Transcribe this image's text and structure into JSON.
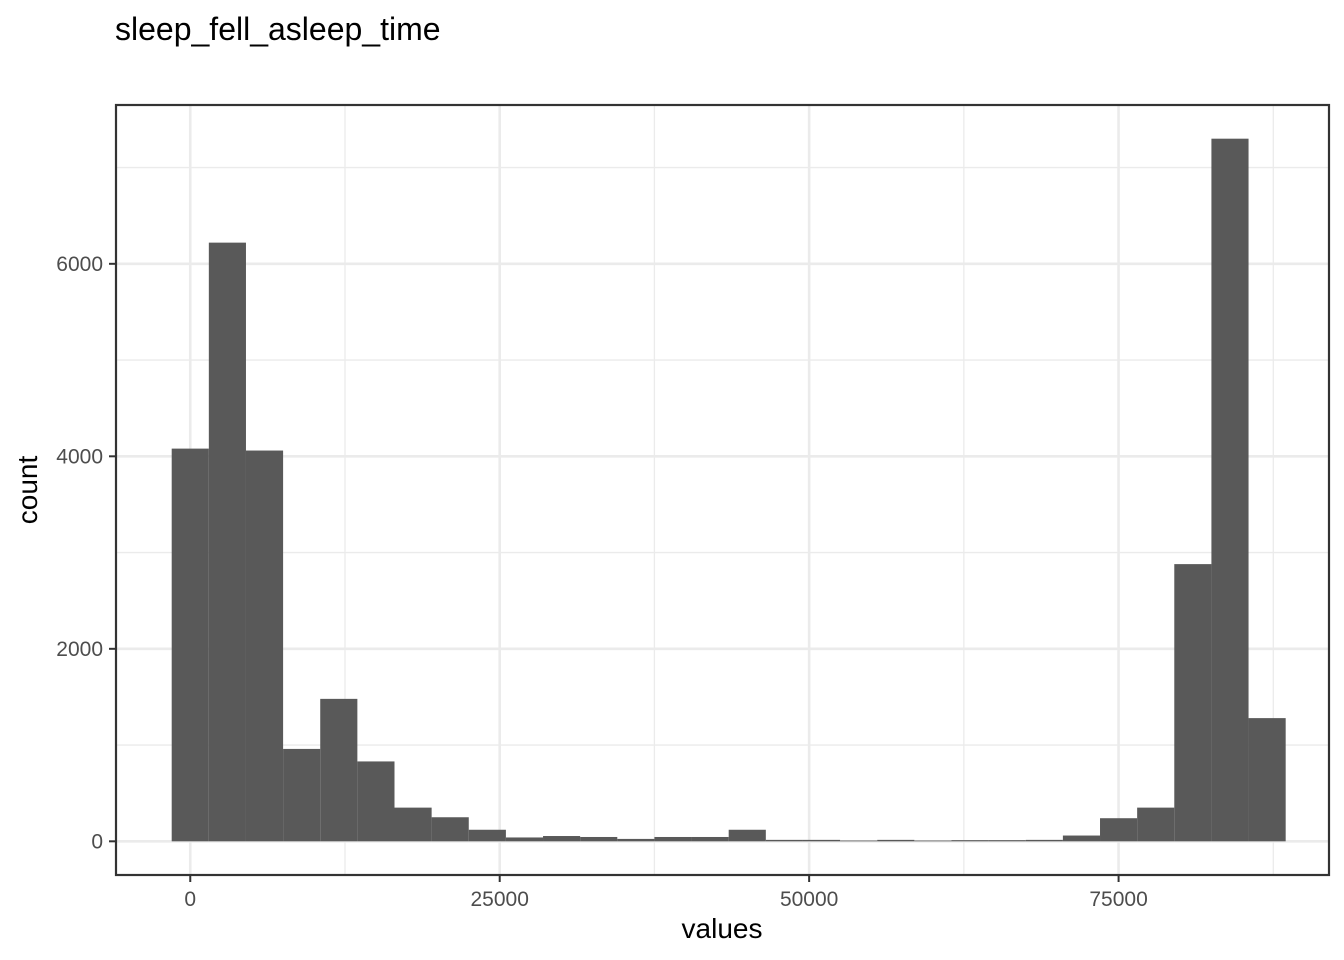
{
  "chart_data": {
    "type": "bar",
    "title": "sleep_fell_asleep_time",
    "xlabel": "values",
    "ylabel": "count",
    "xlim": [
      -6000,
      92000
    ],
    "ylim": [
      -350,
      7650
    ],
    "x_ticks": [
      0,
      25000,
      50000,
      75000
    ],
    "x_tick_labels": [
      "0",
      "25000",
      "50000",
      "75000"
    ],
    "y_ticks": [
      0,
      2000,
      4000,
      6000
    ],
    "y_tick_labels": [
      "0",
      "2000",
      "4000",
      "6000"
    ],
    "x_minor_ticks": [
      12500,
      37500,
      62500,
      87500
    ],
    "y_minor_ticks": [
      1000,
      3000,
      5000,
      7000
    ],
    "bin_width": 3000,
    "bins": [
      {
        "x0": -1500,
        "x1": 1500,
        "count": 4080
      },
      {
        "x0": 1500,
        "x1": 4500,
        "count": 6220
      },
      {
        "x0": 4500,
        "x1": 7500,
        "count": 4060
      },
      {
        "x0": 7500,
        "x1": 10500,
        "count": 960
      },
      {
        "x0": 10500,
        "x1": 13500,
        "count": 1480
      },
      {
        "x0": 13500,
        "x1": 16500,
        "count": 830
      },
      {
        "x0": 16500,
        "x1": 19500,
        "count": 350
      },
      {
        "x0": 19500,
        "x1": 22500,
        "count": 250
      },
      {
        "x0": 22500,
        "x1": 25500,
        "count": 120
      },
      {
        "x0": 25500,
        "x1": 28500,
        "count": 40
      },
      {
        "x0": 28500,
        "x1": 31500,
        "count": 55
      },
      {
        "x0": 31500,
        "x1": 34500,
        "count": 45
      },
      {
        "x0": 34500,
        "x1": 37500,
        "count": 25
      },
      {
        "x0": 37500,
        "x1": 40500,
        "count": 45
      },
      {
        "x0": 40500,
        "x1": 43500,
        "count": 45
      },
      {
        "x0": 43500,
        "x1": 46500,
        "count": 120
      },
      {
        "x0": 46500,
        "x1": 49500,
        "count": 15
      },
      {
        "x0": 49500,
        "x1": 52500,
        "count": 15
      },
      {
        "x0": 52500,
        "x1": 55500,
        "count": 8
      },
      {
        "x0": 55500,
        "x1": 58500,
        "count": 15
      },
      {
        "x0": 58500,
        "x1": 61500,
        "count": 8
      },
      {
        "x0": 61500,
        "x1": 64500,
        "count": 12
      },
      {
        "x0": 64500,
        "x1": 67500,
        "count": 12
      },
      {
        "x0": 67500,
        "x1": 70500,
        "count": 15
      },
      {
        "x0": 70500,
        "x1": 73500,
        "count": 60
      },
      {
        "x0": 73500,
        "x1": 76500,
        "count": 240
      },
      {
        "x0": 76500,
        "x1": 79500,
        "count": 350
      },
      {
        "x0": 79500,
        "x1": 82500,
        "count": 2880
      },
      {
        "x0": 82500,
        "x1": 85500,
        "count": 7300
      },
      {
        "x0": 85500,
        "x1": 88500,
        "count": 1280
      }
    ],
    "bar_color": "#595959",
    "background": "#ffffff",
    "grid": true
  }
}
